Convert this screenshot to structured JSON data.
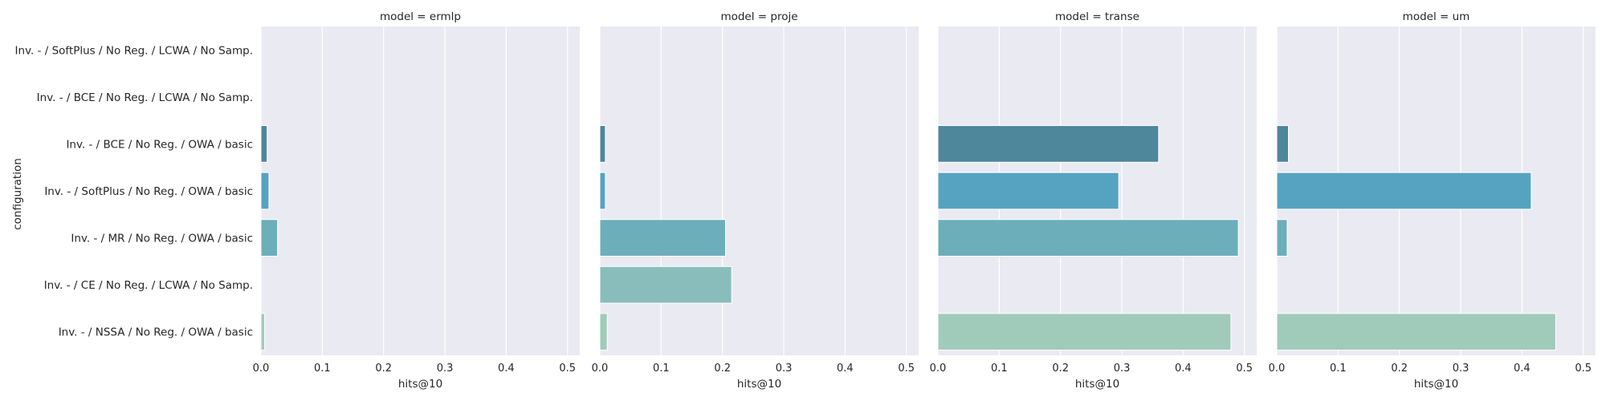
{
  "chart_data": {
    "type": "bar",
    "orientation": "horizontal",
    "xlabel": "hits@10",
    "ylabel": "configuration",
    "xlim": [
      0,
      0.52
    ],
    "xticks": [
      0.0,
      0.1,
      0.2,
      0.3,
      0.4,
      0.5
    ],
    "xtick_labels": [
      "0.0",
      "0.1",
      "0.2",
      "0.3",
      "0.4",
      "0.5"
    ],
    "grid": true,
    "background": "#eaeaf2",
    "categories": [
      "Inv. - / SoftPlus / No Reg. / LCWA / No Samp.",
      "Inv. - / BCE / No Reg. / LCWA / No Samp.",
      "Inv. - / BCE / No Reg. / OWA / basic",
      "Inv. - / SoftPlus / No Reg. / OWA / basic",
      "Inv. - / MR / No Reg. / OWA / basic",
      "Inv. - / CE / No Reg. / LCWA / No Samp.",
      "Inv. - / NSSA / No Reg. / OWA / basic"
    ],
    "colors": [
      "#4e8fa8",
      "#4e8fa8",
      "#4e869c",
      "#56a2c1",
      "#6caeba",
      "#88bdbc",
      "#a0cbba"
    ],
    "facets": [
      {
        "title": "model = ermlp",
        "values": [
          null,
          null,
          0.01,
          0.013,
          0.027,
          null,
          0.006
        ]
      },
      {
        "title": "model = proje",
        "values": [
          null,
          null,
          0.009,
          0.009,
          0.205,
          0.215,
          0.012
        ]
      },
      {
        "title": "model = transe",
        "values": [
          null,
          null,
          0.36,
          0.295,
          0.49,
          null,
          0.478
        ]
      },
      {
        "title": "model = um",
        "values": [
          null,
          null,
          0.019,
          0.415,
          0.017,
          null,
          0.455
        ]
      }
    ]
  }
}
